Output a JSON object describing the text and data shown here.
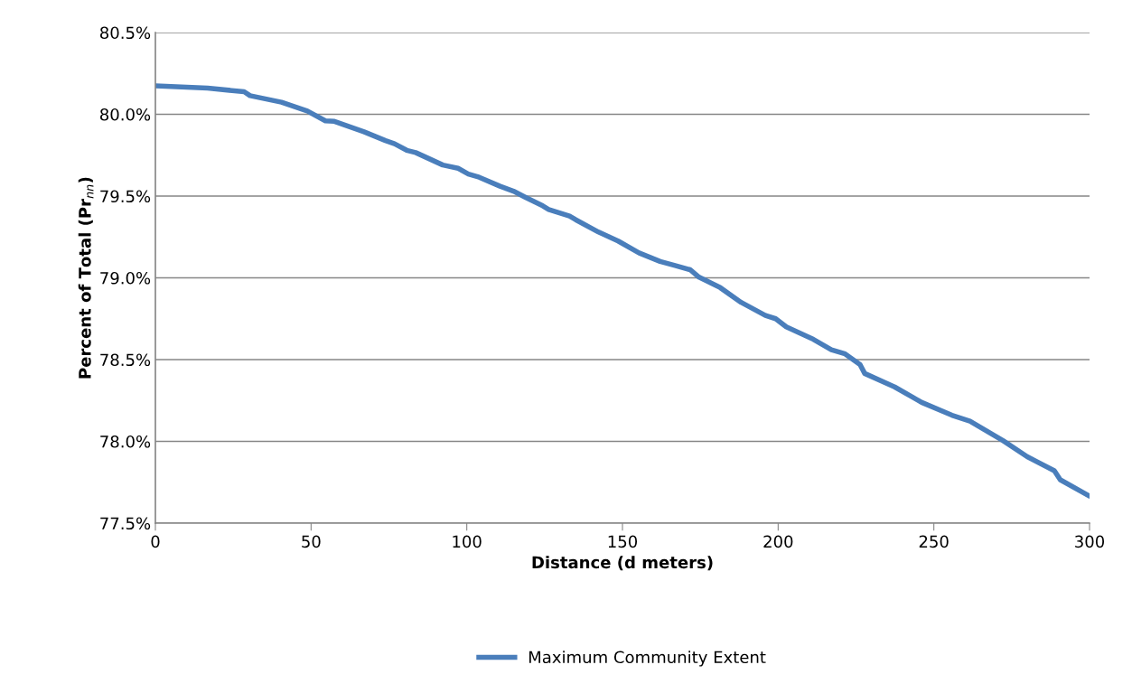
{
  "chart_data": {
    "type": "line",
    "xlabel": "Distance (d meters)",
    "ylabel": "Percent of Total (Pr$_{nn}$)",
    "xlim": [
      0,
      300
    ],
    "xticks": [
      0,
      50,
      100,
      150,
      200,
      250,
      300
    ],
    "ylim": [
      77.5,
      80.5
    ],
    "yticks": [
      {
        "value": 77.5,
        "label": "77.5%"
      },
      {
        "value": 78.0,
        "label": "78.0%"
      },
      {
        "value": 78.5,
        "label": "78.5%"
      },
      {
        "value": 79.0,
        "label": "79.0%"
      },
      {
        "value": 79.5,
        "label": "79.5%"
      },
      {
        "value": 80.0,
        "label": "80.0%"
      },
      {
        "value": 80.5,
        "label": "80.5%"
      }
    ],
    "grid": "y",
    "legend": "bottom",
    "marker": "none",
    "line_style": "solid",
    "series": [
      {
        "name": "Maximum Community Extent",
        "color": "#4a7ebb",
        "x": [
          0,
          16.8,
          28.5,
          30.4,
          40.5,
          48.8,
          54.6,
          57.5,
          67,
          73.9,
          76.8,
          80.7,
          83.6,
          92.3,
          97.2,
          100.5,
          104,
          110.7,
          115,
          118.6,
          124.4,
          126.3,
          133,
          135,
          142.3,
          148.6,
          155.3,
          162.1,
          166.9,
          171.7,
          174.6,
          181.4,
          188.1,
          195.9,
          199.2,
          202.6,
          211.3,
          217.1,
          221.5,
          226.3,
          227.8,
          237.4,
          243.2,
          246.1,
          255.8,
          261.6,
          266.4,
          272.2,
          280,
          288.7,
          290.6,
          300
        ],
        "values": [
          80.174,
          80.16,
          80.138,
          80.114,
          80.074,
          80.02,
          79.96,
          79.957,
          79.893,
          79.839,
          79.82,
          79.78,
          79.766,
          79.69,
          79.67,
          79.635,
          79.615,
          79.56,
          79.53,
          79.495,
          79.44,
          79.418,
          79.378,
          79.355,
          79.28,
          79.225,
          79.153,
          79.1,
          79.075,
          79.05,
          79.004,
          78.94,
          78.85,
          78.77,
          78.75,
          78.7,
          78.624,
          78.56,
          78.535,
          78.47,
          78.415,
          78.333,
          78.27,
          78.238,
          78.16,
          78.124,
          78.07,
          78.005,
          77.906,
          77.82,
          77.765,
          77.665
        ]
      }
    ]
  }
}
